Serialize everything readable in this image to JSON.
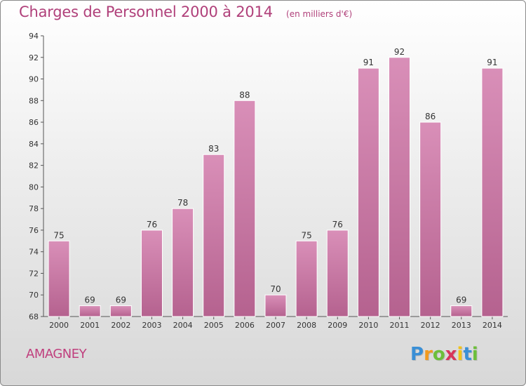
{
  "title": "Charges de Personnel 2000 à 2014",
  "subtitle": "(en milliers d'€)",
  "town": "AMAGNEY",
  "logo": {
    "letters": [
      "P",
      "r",
      "o",
      "x",
      "i",
      "t",
      "i"
    ],
    "colors": [
      "#3a8fd6",
      "#f29a1e",
      "#6cbf3a",
      "#d8355a",
      "#f2c318",
      "#3a8fd6",
      "#6cbf3a"
    ]
  },
  "colors": {
    "bar": "#d98fb8",
    "bar_dark": "#b5628f",
    "title": "#b0407a"
  },
  "chart_data": {
    "type": "bar",
    "title": "Charges de Personnel 2000 à 2014",
    "subtitle": "(en milliers d'€)",
    "categories": [
      "2000",
      "2001",
      "2002",
      "2003",
      "2004",
      "2005",
      "2006",
      "2007",
      "2008",
      "2009",
      "2010",
      "2011",
      "2012",
      "2013",
      "2014"
    ],
    "values": [
      75,
      69,
      69,
      76,
      78,
      83,
      88,
      70,
      75,
      76,
      91,
      92,
      86,
      69,
      91
    ],
    "ylim": [
      68,
      94
    ],
    "yticks": [
      68,
      70,
      72,
      74,
      76,
      78,
      80,
      82,
      84,
      86,
      88,
      90,
      92,
      94
    ],
    "grid": false
  }
}
